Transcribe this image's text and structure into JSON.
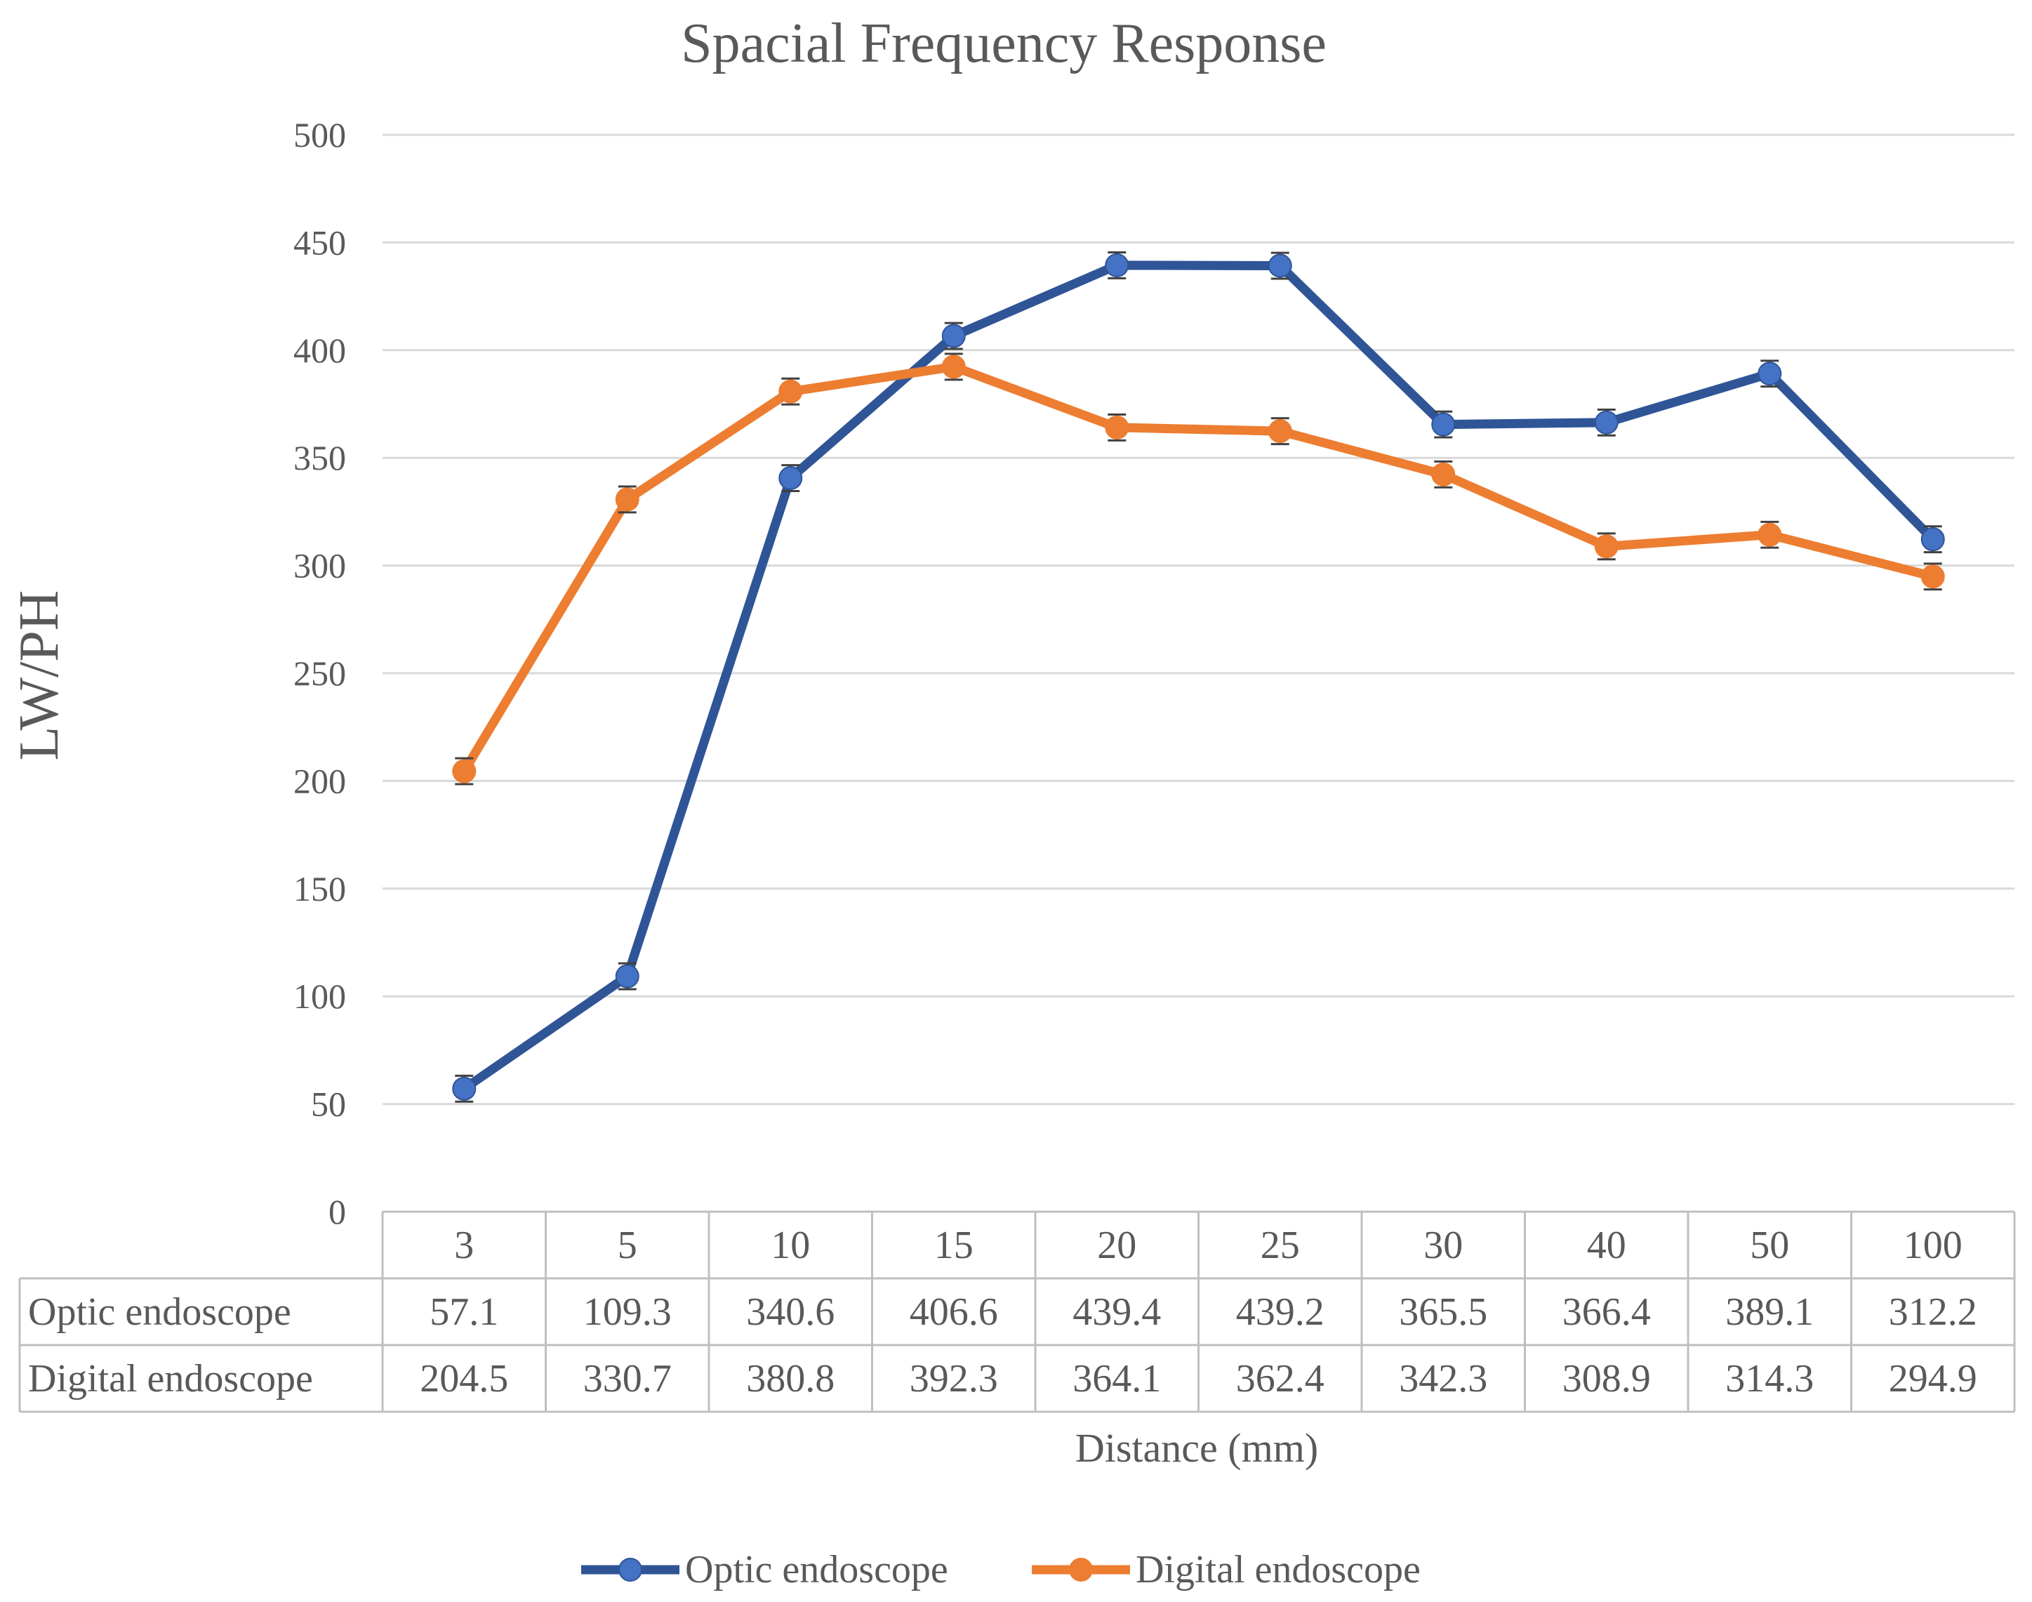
{
  "chart_data": {
    "type": "line",
    "title": "Spacial Frequency Response",
    "xlabel": "Distance (mm)",
    "ylabel": "LW/PH",
    "ylim": [
      0,
      500
    ],
    "yticks": [
      0,
      50,
      100,
      150,
      200,
      250,
      300,
      350,
      400,
      450,
      500
    ],
    "grid": true,
    "legend_position": "bottom",
    "categories": [
      "3",
      "5",
      "10",
      "15",
      "20",
      "25",
      "30",
      "40",
      "50",
      "100"
    ],
    "series": [
      {
        "name": "Optic endoscope",
        "color": "#2F5597",
        "marker_color": "#4472C4",
        "values": [
          57.1,
          109.3,
          340.6,
          406.6,
          439.4,
          439.2,
          365.5,
          366.4,
          389.1,
          312.2
        ],
        "values_text": [
          "57.1",
          "109.3",
          "340.6",
          "406.6",
          "439.4",
          "439.2",
          "365.5",
          "366.4",
          "389.1",
          "312.2"
        ],
        "error": 6
      },
      {
        "name": "Digital endoscope",
        "color": "#ED7D31",
        "marker_color": "#ED7D31",
        "values": [
          204.5,
          330.7,
          380.8,
          392.3,
          364.1,
          362.4,
          342.3,
          308.9,
          314.3,
          294.9
        ],
        "values_text": [
          "204.5",
          "330.7",
          "380.8",
          "392.3",
          "364.1",
          "362.4",
          "342.3",
          "308.9",
          "314.3",
          "294.9"
        ],
        "error": 6
      }
    ]
  }
}
